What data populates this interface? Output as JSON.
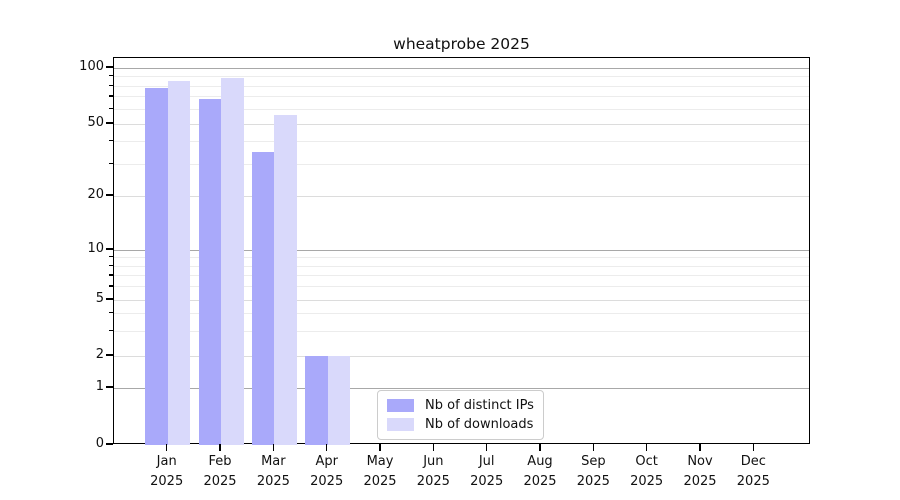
{
  "chart_data": {
    "type": "bar",
    "title": "wheatprobe 2025",
    "categories": [
      "Jan",
      "Feb",
      "Mar",
      "Apr",
      "May",
      "Jun",
      "Jul",
      "Aug",
      "Sep",
      "Oct",
      "Nov",
      "Dec"
    ],
    "year_label": "2025",
    "series": [
      {
        "name": "Nb of distinct IPs",
        "color": "#a9a9fa",
        "values": [
          78,
          68,
          35,
          2,
          0,
          0,
          0,
          0,
          0,
          0,
          0,
          0
        ]
      },
      {
        "name": "Nb of downloads",
        "color": "#d9d9fb",
        "values": [
          85,
          88,
          56,
          2,
          0,
          0,
          0,
          0,
          0,
          0,
          0,
          0
        ]
      }
    ],
    "yscale": "log",
    "ylim": [
      0,
      113
    ],
    "y_ticks": [
      100,
      50,
      20,
      10,
      5,
      2,
      1,
      0
    ],
    "y_major_decades": [
      100,
      10,
      1
    ],
    "y_minor_ticks": [
      90,
      80,
      70,
      60,
      40,
      30,
      9,
      8,
      7,
      6,
      4,
      3
    ],
    "grid": true,
    "legend_position": "lower center"
  },
  "colors": {
    "major_grid": "#a8a8a8",
    "sub_grid": "#dcdcdc",
    "minor_grid": "#ececec",
    "spine": "#000000",
    "background": "#ffffff"
  }
}
